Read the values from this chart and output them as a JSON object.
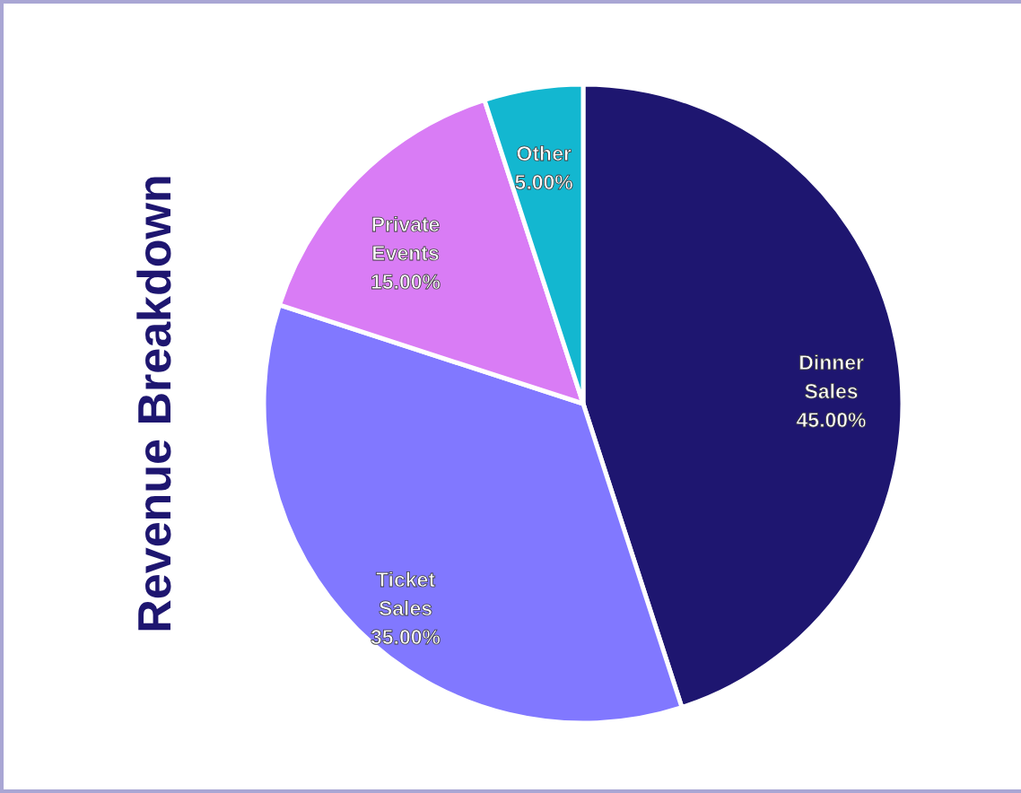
{
  "chart_data": {
    "type": "pie",
    "title": "Revenue Breakdown",
    "categories": [
      "Dinner Sales",
      "Ticket Sales",
      "Private Events",
      "Other"
    ],
    "values": [
      45,
      35,
      15,
      5
    ],
    "colors": [
      "#1e1670",
      "#8178ff",
      "#d97cf5",
      "#13b7d0"
    ],
    "value_labels": [
      "45.00%",
      "35.00%",
      "15.00%",
      "5.00%"
    ]
  }
}
